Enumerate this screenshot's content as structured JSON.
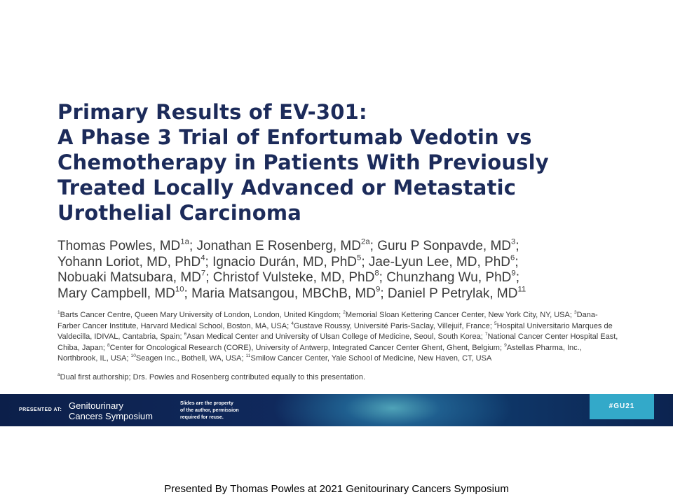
{
  "title_lines": [
    "Primary Results of EV-301:",
    "A Phase 3 Trial of Enfortumab Vedotin vs",
    "Chemotherapy in Patients With Previously",
    "Treated Locally Advanced or Metastatic",
    "Urothelial Carcinoma"
  ],
  "authors": [
    [
      {
        "text": "Thomas Powles, MD",
        "sup": "1a"
      },
      {
        "text": "; Jonathan E Rosenberg, MD",
        "sup": "2a"
      },
      {
        "text": "; Guru P Sonpavde, MD",
        "sup": "3"
      },
      {
        "text": ";"
      }
    ],
    [
      {
        "text": "Yohann Loriot, MD, PhD",
        "sup": "4"
      },
      {
        "text": "; Ignacio Durán, MD, PhD",
        "sup": "5"
      },
      {
        "text": "; Jae-Lyun Lee, MD, PhD",
        "sup": "6"
      },
      {
        "text": ";"
      }
    ],
    [
      {
        "text": "Nobuaki Matsubara, MD",
        "sup": "7"
      },
      {
        "text": "; Christof Vulsteke, MD, PhD",
        "sup": "8"
      },
      {
        "text": "; Chunzhang Wu, PhD",
        "sup": "9"
      },
      {
        "text": ";"
      }
    ],
    [
      {
        "text": "Mary Campbell, MD",
        "sup": "10"
      },
      {
        "text": "; Maria Matsangou, MBChB, MD",
        "sup": "9"
      },
      {
        "text": "; Daniel P Petrylak, MD",
        "sup": "11"
      }
    ]
  ],
  "affiliations": [
    {
      "sup": "1",
      "text": "Barts Cancer Centre, Queen Mary University of London, London, United Kingdom; "
    },
    {
      "sup": "2",
      "text": "Memorial Sloan Kettering Cancer Center, New York City, NY, USA; "
    },
    {
      "sup": "3",
      "text": "Dana-Farber Cancer Institute, Harvard Medical School, Boston, MA, USA; "
    },
    {
      "sup": "4",
      "text": "Gustave Roussy, Université Paris-Saclay, Villejuif, France; "
    },
    {
      "sup": "5",
      "text": "Hospital Universitario Marques de Valdecilla, IDIVAL,  Cantabria, Spain; "
    },
    {
      "sup": "6",
      "text": "Asan Medical Center and University of Ulsan College of Medicine, Seoul, South Korea; "
    },
    {
      "sup": "7",
      "text": "National Cancer Center Hospital East, Chiba, Japan; "
    },
    {
      "sup": "8",
      "text": "Center for Oncological Research (CORE), University of Antwerp, Integrated Cancer Center Ghent, Ghent, Belgium; "
    },
    {
      "sup": "9",
      "text": "Astellas Pharma, Inc., Northbrook, IL, USA; "
    },
    {
      "sup": "10",
      "text": "Seagen Inc., Bothell, WA, USA; "
    },
    {
      "sup": "11",
      "text": "Smilow Cancer Center, Yale School of Medicine, New Haven, CT, USA"
    }
  ],
  "footnote": {
    "sup": "a",
    "text": "Dual first authorship; Drs. Powles and Rosenberg contributed equally to this presentation."
  },
  "banner": {
    "presented_at": "PRESENTED AT:",
    "symposium_lines": [
      "Genitourinary",
      "Cancers Symposium"
    ],
    "notice_lines": [
      "Slides are the property",
      "of the author, permission",
      "required for reuse."
    ],
    "hashtag": "#GU21"
  },
  "caption": "Presented By Thomas Powles at 2021 Genitourinary  Cancers Symposium"
}
